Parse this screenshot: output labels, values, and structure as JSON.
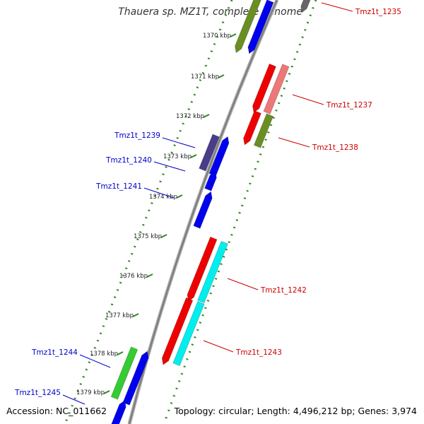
{
  "header": {
    "title": "Thauera sp. MZ1T, complete genome"
  },
  "footer": {
    "accession": "Accession: NC_011662",
    "topology": "Topology: circular; Length: 4,496,212 bp; Genes: 3,974"
  },
  "ticks": [
    "1370 kbp",
    "1371 kbp",
    "1372 kbp",
    "1373 kbp",
    "1374 kbp",
    "1375 kbp",
    "1376 kbp",
    "1377 kbp",
    "1378 kbp",
    "1379 kbp"
  ],
  "gene_labels": [
    {
      "text": "Tmz1t_1235",
      "strand": "forward"
    },
    {
      "text": "Tmz1t_1237",
      "strand": "forward"
    },
    {
      "text": "Tmz1t_1238",
      "strand": "forward"
    },
    {
      "text": "Tmz1t_1239",
      "strand": "reverse"
    },
    {
      "text": "Tmz1t_1240",
      "strand": "reverse"
    },
    {
      "text": "Tmz1t_1241",
      "strand": "reverse"
    },
    {
      "text": "Tmz1t_1242",
      "strand": "forward"
    },
    {
      "text": "Tmz1t_1243",
      "strand": "forward"
    },
    {
      "text": "Tmz1t_1244",
      "strand": "reverse"
    },
    {
      "text": "Tmz1t_1245",
      "strand": "reverse"
    }
  ],
  "colors": {
    "forward_label": "#cc0000",
    "reverse_label": "#0000cc",
    "red": "#ee0000",
    "pink": "#ee7777",
    "olive": "#6b8e23",
    "green": "#33cc33",
    "blue": "#0000ee",
    "slate": "#483d8b",
    "cyan": "#00eeee",
    "gray": "#666666",
    "backbone": "#888888",
    "tick": "#2e8b1e"
  }
}
